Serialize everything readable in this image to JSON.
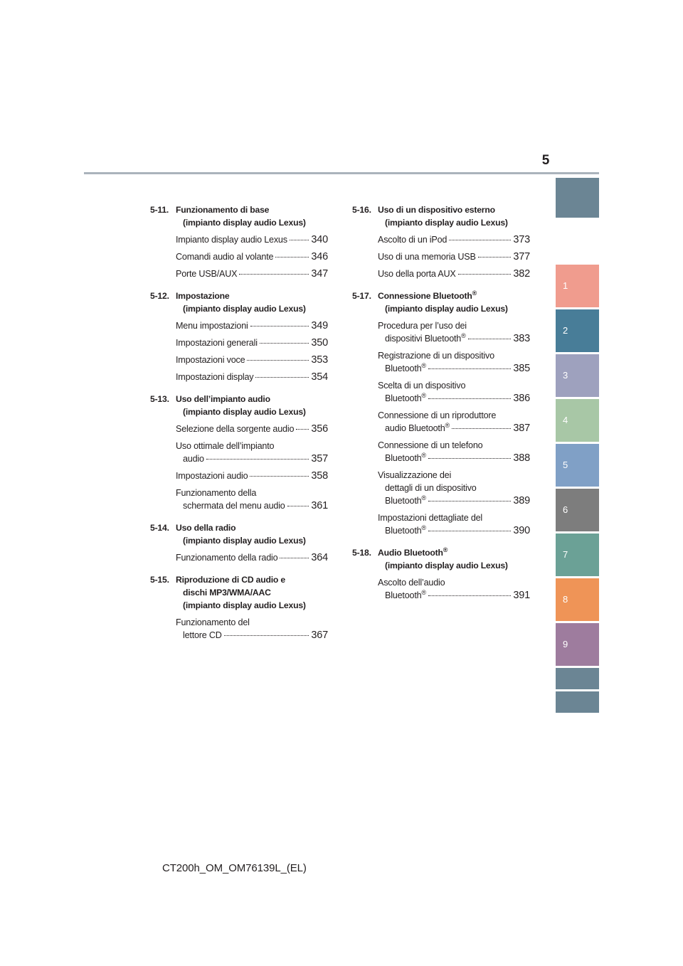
{
  "page": {
    "number": "5",
    "footer": "CT200h_OM_OM76139L_(EL)"
  },
  "tabs": [
    {
      "label": "",
      "color": "#6b8594"
    },
    {
      "label": "1",
      "color": "#f09c8e"
    },
    {
      "label": "2",
      "color": "#487d98"
    },
    {
      "label": "3",
      "color": "#9ea1be"
    },
    {
      "label": "4",
      "color": "#a8c7a6"
    },
    {
      "label": "5",
      "color": "#80a0c6"
    },
    {
      "label": "6",
      "color": "#7d7d7d"
    },
    {
      "label": "7",
      "color": "#6ba196"
    },
    {
      "label": "8",
      "color": "#ef9457"
    },
    {
      "label": "9",
      "color": "#9e7c9e"
    },
    {
      "label": "",
      "color": "#6b8594"
    },
    {
      "label": "",
      "color": "#6b8594"
    }
  ],
  "left_sections": [
    {
      "num": "5-11.",
      "title": "Funzionamento di base",
      "subtitle": "(impianto display audio Lexus)",
      "entries": [
        {
          "lines": [],
          "last": "Impianto display audio Lexus",
          "page": "340"
        },
        {
          "lines": [],
          "last": "Comandi audio al volante",
          "page": "346"
        },
        {
          "lines": [],
          "last": "Porte USB/AUX",
          "page": "347"
        }
      ]
    },
    {
      "num": "5-12.",
      "title": "Impostazione",
      "subtitle": "(impianto display audio Lexus)",
      "entries": [
        {
          "lines": [],
          "last": "Menu impostazioni",
          "page": "349"
        },
        {
          "lines": [],
          "last": "Impostazioni generali",
          "page": "350"
        },
        {
          "lines": [],
          "last": "Impostazioni voce",
          "page": "353"
        },
        {
          "lines": [],
          "last": "Impostazioni display",
          "page": "354"
        }
      ]
    },
    {
      "num": "5-13.",
      "title": "Uso dell’impianto audio",
      "subtitle": "(impianto display audio Lexus)",
      "entries": [
        {
          "lines": [],
          "last": "Selezione della sorgente audio",
          "page": "356"
        },
        {
          "lines": [
            "Uso ottimale dell’impianto"
          ],
          "last": "audio",
          "page": "357"
        },
        {
          "lines": [],
          "last": "Impostazioni audio",
          "page": "358"
        },
        {
          "lines": [
            "Funzionamento della"
          ],
          "last": "schermata del menu audio",
          "page": "361"
        }
      ]
    },
    {
      "num": "5-14.",
      "title": "Uso della radio",
      "subtitle": "(impianto display audio Lexus)",
      "entries": [
        {
          "lines": [],
          "last": "Funzionamento della radio",
          "page": "364"
        }
      ]
    },
    {
      "num": "5-15.",
      "title": "Riproduzione di CD audio e",
      "subtitle": "dischi MP3/WMA/AAC",
      "subtitle2": "(impianto display audio Lexus)",
      "entries": [
        {
          "lines": [
            "Funzionamento del"
          ],
          "last": "lettore CD",
          "page": "367"
        }
      ]
    }
  ],
  "right_sections": [
    {
      "num": "5-16.",
      "title": "Uso di un dispositivo esterno",
      "subtitle": "(impianto display audio Lexus)",
      "entries": [
        {
          "lines": [],
          "last": "Ascolto di un iPod",
          "page": "373"
        },
        {
          "lines": [],
          "last": "Uso di una memoria USB",
          "page": "377"
        },
        {
          "lines": [],
          "last": "Uso della porta AUX",
          "page": "382"
        }
      ]
    },
    {
      "num": "5-17.",
      "title": "Connessione Bluetooth®",
      "subtitle": "(impianto display audio Lexus)",
      "entries": [
        {
          "lines": [
            "Procedura per l’uso dei"
          ],
          "last": "dispositivi Bluetooth®",
          "page": "383"
        },
        {
          "lines": [
            "Registrazione di un dispositivo"
          ],
          "last": "Bluetooth®",
          "page": "385"
        },
        {
          "lines": [
            "Scelta di un dispositivo"
          ],
          "last": "Bluetooth®",
          "page": "386"
        },
        {
          "lines": [
            "Connessione di un riproduttore"
          ],
          "last": "audio Bluetooth®",
          "page": "387"
        },
        {
          "lines": [
            "Connessione di un telefono"
          ],
          "last": "Bluetooth®",
          "page": "388"
        },
        {
          "lines": [
            "Visualizzazione dei",
            "dettagli di un dispositivo"
          ],
          "last": "Bluetooth®",
          "page": "389"
        },
        {
          "lines": [
            "Impostazioni dettagliate del"
          ],
          "last": "Bluetooth®",
          "page": "390"
        }
      ]
    },
    {
      "num": "5-18.",
      "title": "Audio Bluetooth®",
      "subtitle": "(impianto display audio Lexus)",
      "entries": [
        {
          "lines": [
            "Ascolto dell’audio"
          ],
          "last": "Bluetooth®",
          "page": "391"
        }
      ]
    }
  ]
}
